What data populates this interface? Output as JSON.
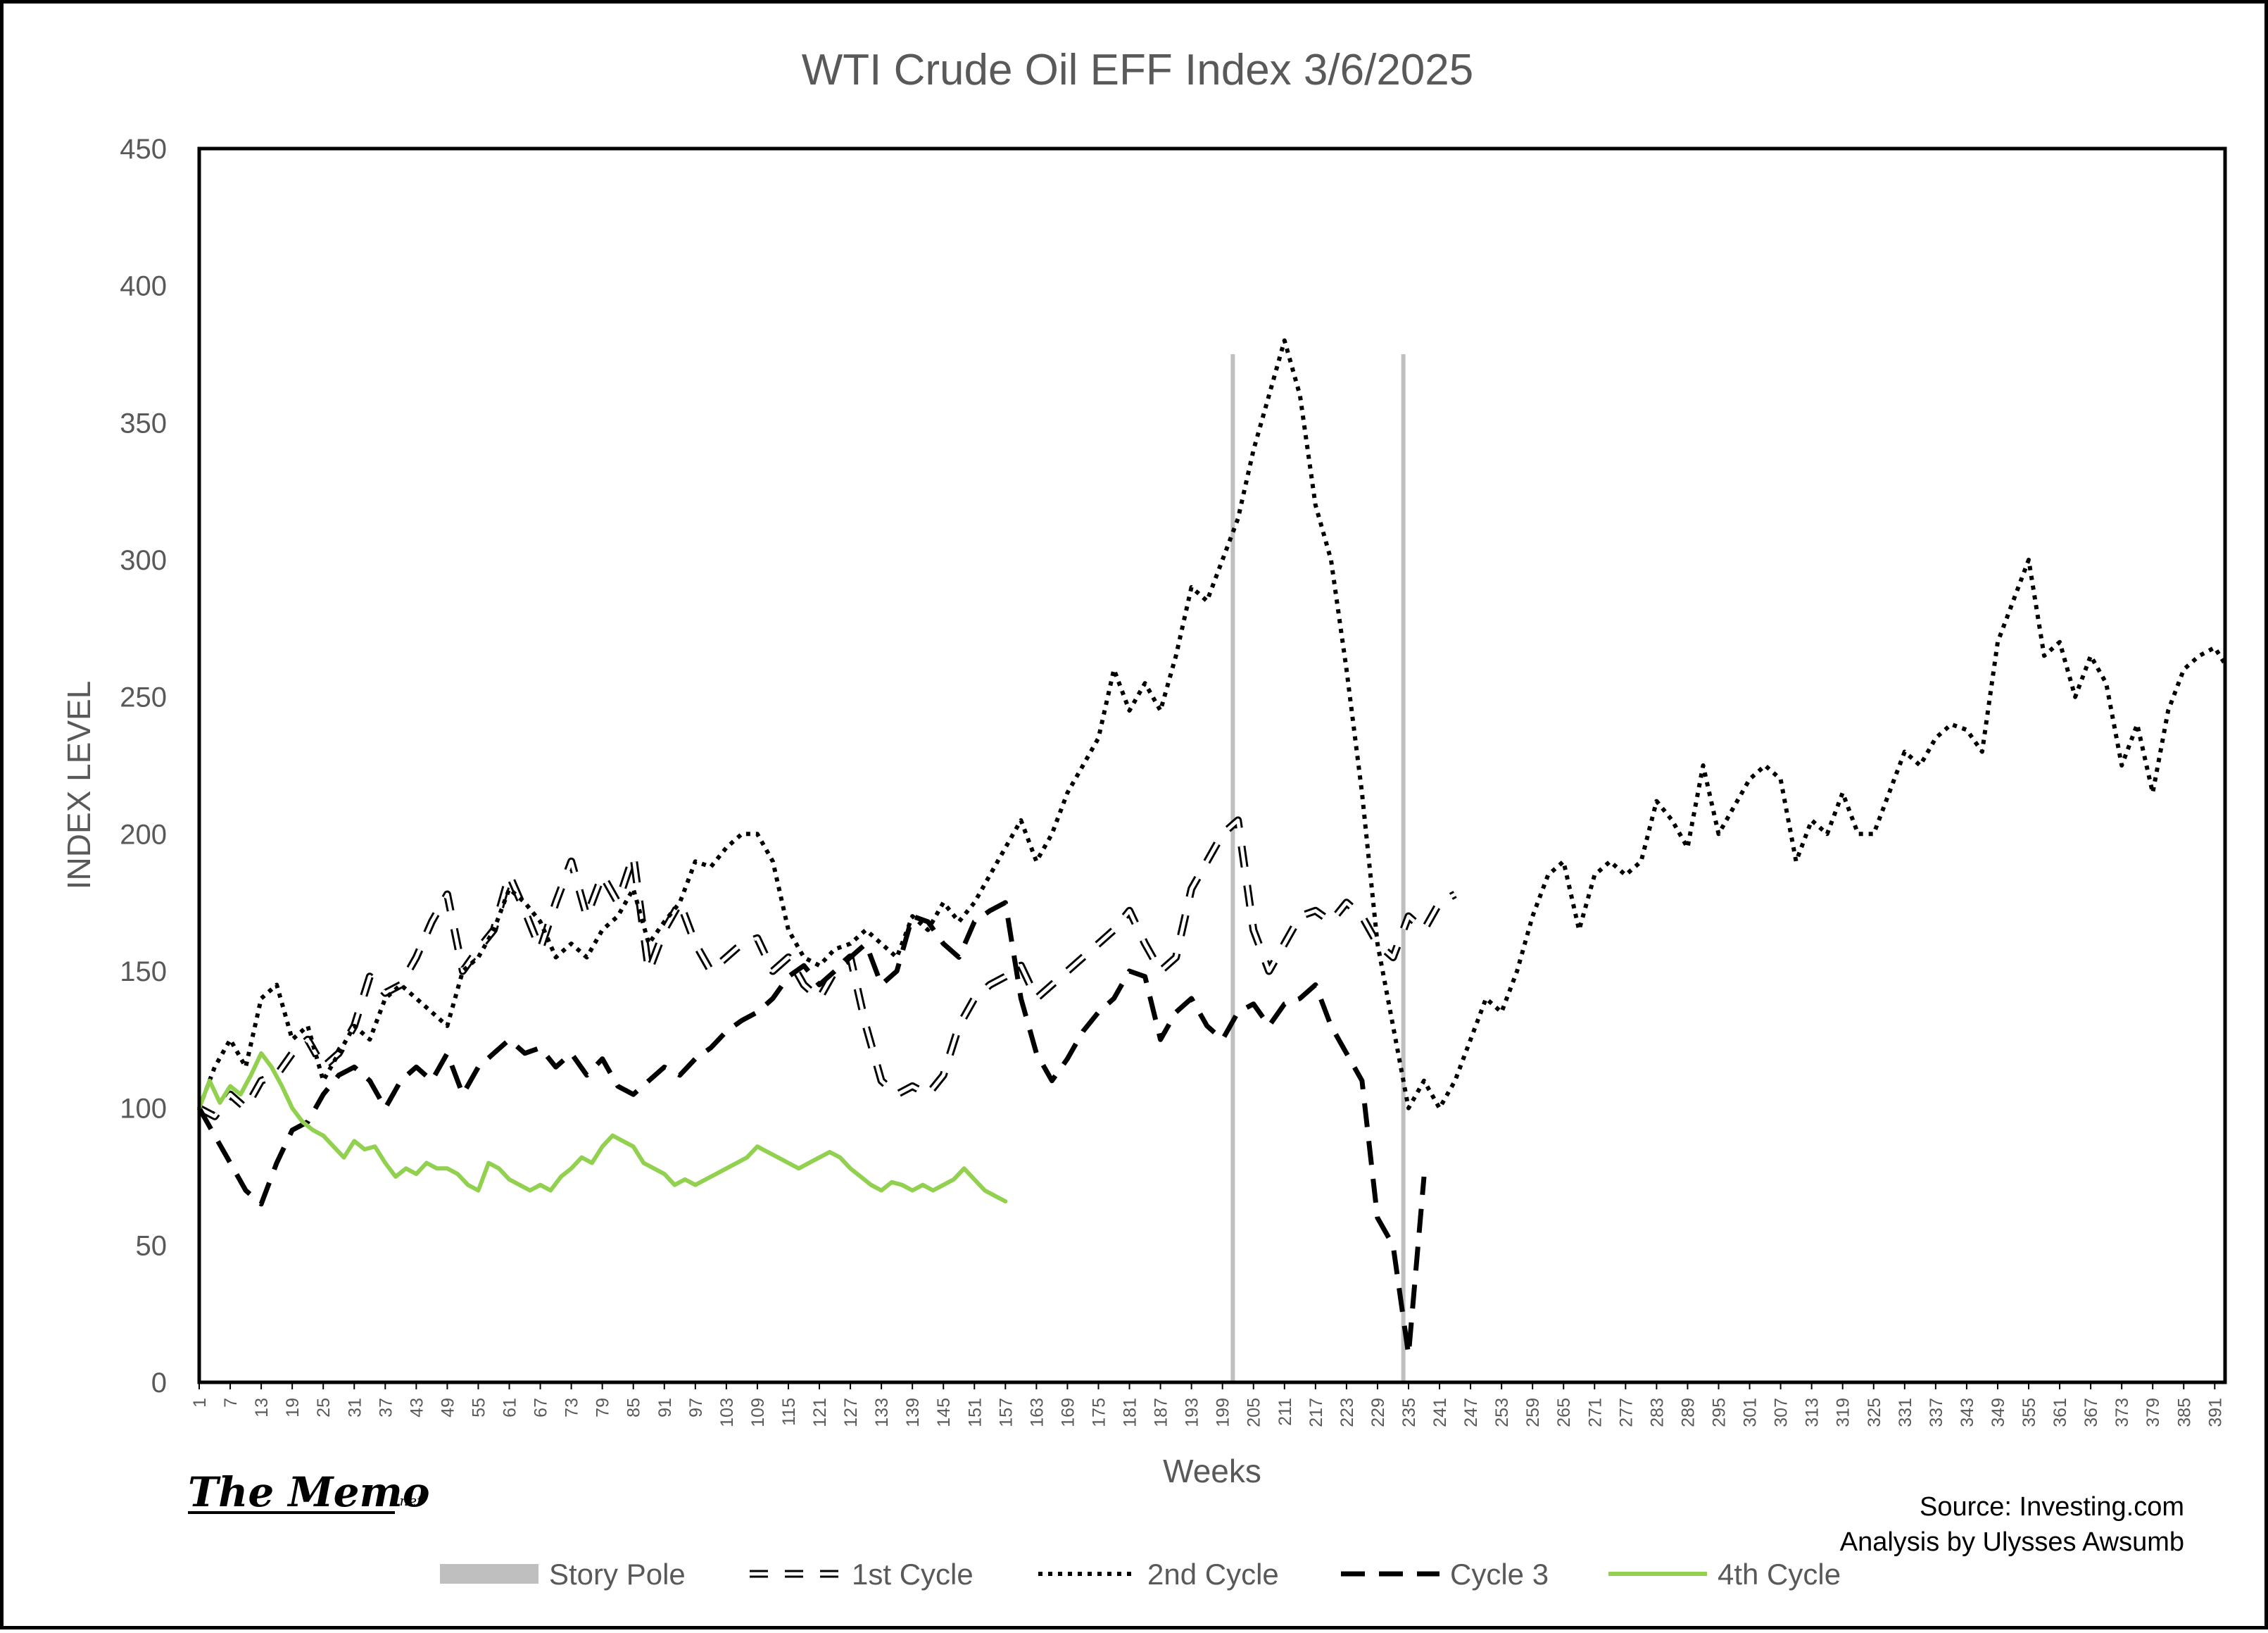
{
  "chart_data": {
    "type": "line",
    "title": "WTI Crude Oil EFF Index 3/6/2025",
    "xlabel": "Weeks",
    "ylabel": "INDEX LEVEL",
    "ylim": [
      0,
      450
    ],
    "yticks": [
      0,
      50,
      100,
      150,
      200,
      250,
      300,
      350,
      400,
      450
    ],
    "xlim": [
      1,
      393
    ],
    "xticks": [
      1,
      7,
      13,
      19,
      25,
      31,
      37,
      43,
      49,
      55,
      61,
      67,
      73,
      79,
      85,
      91,
      97,
      103,
      109,
      115,
      121,
      127,
      133,
      139,
      145,
      151,
      157,
      163,
      169,
      175,
      181,
      187,
      193,
      199,
      205,
      211,
      217,
      223,
      229,
      235,
      241,
      247,
      253,
      259,
      265,
      271,
      277,
      283,
      289,
      295,
      301,
      307,
      313,
      319,
      325,
      331,
      337,
      343,
      349,
      355,
      361,
      367,
      373,
      379,
      385,
      391
    ],
    "grid": false,
    "legend_position": "bottom",
    "story_poles": [
      201,
      234
    ],
    "series": [
      {
        "name": "1st Cycle",
        "color": "#000000",
        "style": "long-dash-outline",
        "x": [
          1,
          4,
          7,
          10,
          13,
          16,
          19,
          22,
          25,
          28,
          31,
          34,
          37,
          40,
          43,
          46,
          49,
          52,
          55,
          58,
          61,
          64,
          67,
          70,
          73,
          76,
          79,
          82,
          85,
          88,
          91,
          94,
          97,
          100,
          103,
          106,
          109,
          112,
          115,
          118,
          121,
          124,
          127,
          130,
          133,
          136,
          139,
          142,
          145,
          148,
          151,
          154,
          157,
          160,
          163,
          166,
          169,
          172,
          175,
          178,
          181,
          184,
          187,
          190,
          193,
          196,
          199,
          202,
          205,
          208,
          211,
          214,
          217,
          220,
          223,
          226,
          229,
          232,
          235,
          238,
          241,
          244
        ],
        "y": [
          100,
          97,
          105,
          100,
          110,
          112,
          120,
          125,
          115,
          120,
          130,
          148,
          142,
          145,
          155,
          168,
          178,
          150,
          158,
          165,
          185,
          172,
          158,
          175,
          190,
          170,
          185,
          175,
          192,
          150,
          165,
          175,
          160,
          150,
          155,
          160,
          162,
          150,
          155,
          145,
          140,
          150,
          155,
          130,
          110,
          105,
          108,
          105,
          112,
          130,
          140,
          145,
          148,
          152,
          140,
          145,
          150,
          155,
          160,
          165,
          172,
          160,
          150,
          155,
          180,
          190,
          200,
          205,
          165,
          150,
          160,
          170,
          172,
          168,
          175,
          170,
          160,
          155,
          170,
          165,
          175,
          178
        ]
      },
      {
        "name": "2nd Cycle",
        "color": "#000000",
        "style": "dotted",
        "x": [
          1,
          4,
          7,
          10,
          13,
          16,
          19,
          22,
          25,
          28,
          31,
          34,
          37,
          40,
          43,
          46,
          49,
          52,
          55,
          58,
          61,
          64,
          67,
          70,
          73,
          76,
          79,
          82,
          85,
          88,
          91,
          94,
          97,
          100,
          103,
          106,
          109,
          112,
          115,
          118,
          121,
          124,
          127,
          130,
          133,
          136,
          139,
          142,
          145,
          148,
          151,
          154,
          157,
          160,
          163,
          166,
          169,
          172,
          175,
          178,
          181,
          184,
          187,
          190,
          193,
          196,
          199,
          202,
          205,
          208,
          211,
          214,
          217,
          220,
          223,
          226,
          229,
          232,
          235,
          238,
          241,
          244,
          247,
          250,
          253,
          256,
          259,
          262,
          265,
          268,
          271,
          274,
          277,
          280,
          283,
          286,
          289,
          292,
          295,
          298,
          301,
          304,
          307,
          310,
          313,
          316,
          319,
          322,
          325,
          328,
          331,
          334,
          337,
          340,
          343,
          346,
          349,
          352,
          355,
          358,
          361,
          364,
          367,
          370,
          373,
          376,
          379,
          382,
          385,
          388,
          391,
          393
        ],
        "y": [
          100,
          115,
          125,
          115,
          140,
          145,
          125,
          130,
          110,
          120,
          130,
          125,
          140,
          145,
          140,
          135,
          130,
          150,
          155,
          165,
          180,
          175,
          168,
          155,
          160,
          155,
          165,
          170,
          180,
          160,
          168,
          175,
          190,
          188,
          195,
          200,
          200,
          190,
          165,
          155,
          152,
          158,
          160,
          165,
          160,
          155,
          170,
          165,
          175,
          168,
          175,
          185,
          195,
          205,
          190,
          200,
          215,
          225,
          235,
          260,
          245,
          255,
          245,
          265,
          290,
          285,
          300,
          315,
          340,
          360,
          380,
          360,
          320,
          300,
          260,
          215,
          160,
          130,
          100,
          110,
          100,
          110,
          125,
          140,
          135,
          150,
          170,
          185,
          190,
          165,
          185,
          190,
          185,
          190,
          212,
          205,
          195,
          225,
          200,
          210,
          220,
          225,
          220,
          190,
          205,
          200,
          215,
          200,
          200,
          215,
          230,
          225,
          235,
          240,
          238,
          230,
          270,
          285,
          300,
          265,
          270,
          250,
          265,
          255,
          225,
          240,
          215,
          245,
          260,
          265,
          268,
          262
        ]
      },
      {
        "name": "Cycle 3",
        "color": "#000000",
        "style": "dashed",
        "x": [
          1,
          4,
          7,
          10,
          13,
          16,
          19,
          22,
          25,
          28,
          31,
          34,
          37,
          40,
          43,
          46,
          49,
          52,
          55,
          58,
          61,
          64,
          67,
          70,
          73,
          76,
          79,
          82,
          85,
          88,
          91,
          94,
          97,
          100,
          103,
          106,
          109,
          112,
          115,
          118,
          121,
          124,
          127,
          130,
          133,
          136,
          139,
          142,
          145,
          148,
          151,
          154,
          157,
          160,
          163,
          166,
          169,
          172,
          175,
          178,
          181,
          184,
          187,
          190,
          193,
          196,
          199,
          202,
          205,
          208,
          211,
          214,
          217,
          220,
          223,
          226,
          229,
          232,
          235,
          238
        ],
        "y": [
          100,
          90,
          80,
          70,
          65,
          80,
          92,
          95,
          105,
          112,
          115,
          110,
          100,
          110,
          115,
          110,
          120,
          105,
          115,
          120,
          125,
          120,
          122,
          115,
          120,
          112,
          118,
          108,
          105,
          110,
          115,
          112,
          118,
          122,
          128,
          132,
          135,
          140,
          148,
          152,
          145,
          150,
          155,
          160,
          145,
          150,
          170,
          168,
          160,
          155,
          168,
          172,
          175,
          140,
          120,
          110,
          118,
          128,
          135,
          140,
          150,
          148,
          125,
          135,
          140,
          130,
          125,
          135,
          138,
          130,
          138,
          140,
          145,
          130,
          120,
          110,
          60,
          50,
          10,
          75
        ]
      },
      {
        "name": "4th Cycle",
        "color": "#92D050",
        "style": "solid",
        "x": [
          1,
          3,
          5,
          7,
          9,
          11,
          13,
          15,
          17,
          19,
          21,
          23,
          25,
          27,
          29,
          31,
          33,
          35,
          37,
          39,
          41,
          43,
          45,
          47,
          49,
          51,
          53,
          55,
          57,
          59,
          61,
          63,
          65,
          67,
          69,
          71,
          73,
          75,
          77,
          79,
          81,
          83,
          85,
          87,
          89,
          91,
          93,
          95,
          97,
          99,
          101,
          103,
          105,
          107,
          109,
          111,
          113,
          115,
          117,
          119,
          121,
          123,
          125,
          127,
          129,
          131,
          133,
          135,
          137,
          139,
          141,
          143,
          145,
          147,
          149,
          151,
          153,
          155,
          157
        ],
        "y": [
          100,
          110,
          102,
          108,
          105,
          112,
          120,
          115,
          108,
          100,
          95,
          92,
          90,
          86,
          82,
          88,
          85,
          86,
          80,
          75,
          78,
          76,
          80,
          78,
          78,
          76,
          72,
          70,
          80,
          78,
          74,
          72,
          70,
          72,
          70,
          75,
          78,
          82,
          80,
          86,
          90,
          88,
          86,
          80,
          78,
          76,
          72,
          74,
          72,
          74,
          76,
          78,
          80,
          82,
          86,
          84,
          82,
          80,
          78,
          80,
          82,
          84,
          82,
          78,
          75,
          72,
          70,
          73,
          72,
          70,
          72,
          70,
          72,
          74,
          78,
          74,
          70,
          68,
          66
        ]
      }
    ]
  },
  "legend": [
    {
      "label": "Story Pole",
      "swatch": "story-pole",
      "color": "#BFBFBF"
    },
    {
      "label": "1st Cycle",
      "swatch": "long-dash-outline",
      "color": "#000000"
    },
    {
      "label": "2nd Cycle",
      "swatch": "dotted",
      "color": "#000000"
    },
    {
      "label": "Cycle 3",
      "swatch": "dashed",
      "color": "#000000"
    },
    {
      "label": "4th Cycle",
      "swatch": "solid",
      "color": "#92D050"
    }
  ],
  "logo": {
    "main": "The Memo",
    "suffix": ".net"
  },
  "source_lines": [
    "Source: Investing.com",
    "Analysis by Ulysses Awsumb"
  ]
}
